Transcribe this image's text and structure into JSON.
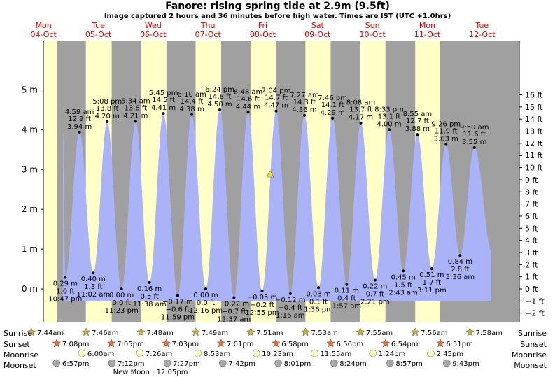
{
  "chart_data": {
    "type": "area",
    "title": "Fanore: rising  spring tide at 2.9m (9.5ft)",
    "subtitle": "Image captured 2 hours and 36 minutes before high water. Times are IST (UTC +1.0hrs)",
    "ylim": [
      -0.63,
      5.0
    ],
    "y_ticks_m": [
      {
        "v": 0,
        "label": "0 m"
      },
      {
        "v": 1,
        "label": "1 m"
      },
      {
        "v": 2,
        "label": "2 m"
      },
      {
        "v": 3,
        "label": "3 m"
      },
      {
        "v": 4,
        "label": "4 m"
      },
      {
        "v": 5,
        "label": "5 m"
      }
    ],
    "y_ticks_ft": [
      "−2 ft",
      "−1 ft",
      "0 ft",
      "1 ft",
      "2 ft",
      "3 ft",
      "4 ft",
      "5 ft",
      "6 ft",
      "7 ft",
      "8 ft",
      "9 ft",
      "10 ft",
      "11 ft",
      "12 ft",
      "13 ft",
      "14 ft",
      "15 ft",
      "16 ft"
    ],
    "days": [
      {
        "dow": "Mon",
        "date": "04-Oct"
      },
      {
        "dow": "Tue",
        "date": "05-Oct"
      },
      {
        "dow": "Wed",
        "date": "06-Oct"
      },
      {
        "dow": "Thu",
        "date": "07-Oct"
      },
      {
        "dow": "Fri",
        "date": "08-Oct"
      },
      {
        "dow": "Sat",
        "date": "09-Oct"
      },
      {
        "dow": "Sun",
        "date": "10-Oct"
      },
      {
        "dow": "Mon",
        "date": "11-Oct"
      },
      {
        "dow": "Tue",
        "date": "12-Oct"
      }
    ],
    "day_night": [
      {
        "state": "night",
        "from": "Mon 00:00",
        "to": "Mon 07:44"
      },
      {
        "state": "day",
        "from": "Mon 07:44",
        "to": "Mon 19:08"
      },
      {
        "state": "day",
        "from": "Tue 07:46",
        "to": "Tue 19:05"
      },
      {
        "state": "day",
        "from": "Wed 07:48",
        "to": "Wed 19:03"
      },
      {
        "state": "day",
        "from": "Thu 07:49",
        "to": "Thu 19:01"
      },
      {
        "state": "day",
        "from": "Fri 07:51",
        "to": "Fri 18:58"
      },
      {
        "state": "day",
        "from": "Sat 07:53",
        "to": "Sat 18:56"
      },
      {
        "state": "day",
        "from": "Sun 07:55",
        "to": "Sun 18:54"
      },
      {
        "state": "day",
        "from": "Mon 07:56",
        "to": "Mon 18:51"
      }
    ],
    "tides": [
      {
        "t": "Mon 22:47",
        "m": 0.29,
        "label": [
          "0.29 m",
          "1.0 ft",
          "10:47 pm"
        ],
        "type": "low"
      },
      {
        "t": "Tue 04:59",
        "m": 3.94,
        "label": [
          "4:59 am",
          "12.9 ft",
          "3.94 m"
        ],
        "type": "high"
      },
      {
        "t": "Tue 11:02",
        "m": 0.4,
        "label": [
          "0.40 m",
          "1.3 ft",
          "11:02 am"
        ],
        "type": "low"
      },
      {
        "t": "Tue 17:08",
        "m": 4.2,
        "label": [
          "5:08 pm",
          "13.8 ft",
          "4.20 m"
        ],
        "type": "high"
      },
      {
        "t": "Tue 23:23",
        "m": 0.0,
        "label": [
          "0.00 m",
          "0.0 ft",
          "11:23 pm"
        ],
        "type": "low"
      },
      {
        "t": "Wed 05:34",
        "m": 4.21,
        "label": [
          "5:34 am",
          "13.8 ft",
          "4.21 m"
        ],
        "type": "high"
      },
      {
        "t": "Wed 11:38",
        "m": 0.16,
        "label": [
          "0.16 m",
          "0.5 ft",
          "11:38 am"
        ],
        "type": "low"
      },
      {
        "t": "Wed 17:45",
        "m": 4.41,
        "label": [
          "5:45 pm",
          "14.5 ft",
          "4.41 m"
        ],
        "type": "high"
      },
      {
        "t": "Wed 23:59",
        "m": -0.17,
        "label": [
          "−0.17 m",
          "−0.6 ft",
          "11:59 pm"
        ],
        "type": "low"
      },
      {
        "t": "Thu 06:10",
        "m": 4.38,
        "label": [
          "6:10 am",
          "14.4 ft",
          "4.38 m"
        ],
        "type": "high"
      },
      {
        "t": "Thu 12:16",
        "m": 0.0,
        "label": [
          "0.00 m",
          "0.0 ft",
          "12:16 pm"
        ],
        "type": "low"
      },
      {
        "t": "Thu 18:24",
        "m": 4.5,
        "label": [
          "6:24 pm",
          "14.8 ft",
          "4.50 m"
        ],
        "type": "high"
      },
      {
        "t": "Fri 00:37",
        "m": -0.22,
        "label": [
          "−0.22 m",
          "−0.7 ft",
          "12:37 am"
        ],
        "type": "low"
      },
      {
        "t": "Fri 06:48",
        "m": 4.44,
        "label": [
          "6:48 am",
          "14.6 ft",
          "4.44 m"
        ],
        "type": "high"
      },
      {
        "t": "Fri 12:55",
        "m": -0.05,
        "label": [
          "−0.05 m",
          "−0.2 ft",
          "12:55 pm"
        ],
        "type": "low"
      },
      {
        "t": "Fri 19:04",
        "m": 4.47,
        "label": [
          "7:04 pm",
          "14.7 ft",
          "4.47 m"
        ],
        "type": "high"
      },
      {
        "t": "Sat 01:16",
        "m": -0.12,
        "label": [
          "−0.12 m",
          "−0.4 ft",
          "1:16 am"
        ],
        "type": "low"
      },
      {
        "t": "Sat 07:27",
        "m": 4.36,
        "label": [
          "7:27 am",
          "14.3 ft",
          "4.36 m"
        ],
        "type": "high"
      },
      {
        "t": "Sat 13:36",
        "m": 0.03,
        "label": [
          "0.03 m",
          "0.1 ft",
          "1:36 pm"
        ],
        "type": "low"
      },
      {
        "t": "Sat 19:46",
        "m": 4.29,
        "label": [
          "7:46 pm",
          "14.1 ft",
          "4.29 m"
        ],
        "type": "high"
      },
      {
        "t": "Sun 01:57",
        "m": 0.11,
        "label": [
          "0.11 m",
          "0.4 ft",
          "1:57 am"
        ],
        "type": "low"
      },
      {
        "t": "Sun 08:08",
        "m": 4.17,
        "label": [
          "8:08 am",
          "13.7 ft",
          "4.17 m"
        ],
        "type": "high"
      },
      {
        "t": "Sun 14:21",
        "m": 0.22,
        "label": [
          "0.22 m",
          "0.7 ft",
          "2:21 pm"
        ],
        "type": "low"
      },
      {
        "t": "Sun 20:33",
        "m": 4.0,
        "label": [
          "8:33 pm",
          "13.1 ft",
          "4.00 m"
        ],
        "type": "high"
      },
      {
        "t": "Mon 02:43",
        "m": 0.45,
        "label": [
          "0.45 m",
          "1.5 ft",
          "2:43 am"
        ],
        "type": "low"
      },
      {
        "t": "Mon 08:55",
        "m": 3.88,
        "label": [
          "8:55 am",
          "12.7 ft",
          "3.88 m"
        ],
        "type": "high"
      },
      {
        "t": "Mon 15:11",
        "m": 0.51,
        "label": [
          "0.51 m",
          "1.7 ft",
          "3:11 pm"
        ],
        "type": "low"
      },
      {
        "t": "Mon 21:26",
        "m": 3.63,
        "label": [
          "9:26 pm",
          "11.9 ft",
          "3.63 m"
        ],
        "type": "high"
      },
      {
        "t": "Tue 03:36",
        "m": 0.84,
        "label": [
          "0.84 m",
          "2.8 ft",
          "3:36 am"
        ],
        "type": "low"
      },
      {
        "t": "Tue 09:50",
        "m": 3.55,
        "label": [
          "9:50 am",
          "11.6 ft",
          "3.55 m"
        ],
        "type": "high"
      }
    ],
    "current": {
      "t": "Fri 16:28",
      "m": 2.9
    },
    "sunrise": [
      "7:44am",
      "7:46am",
      "7:48am",
      "7:49am",
      "7:51am",
      "7:53am",
      "7:55am",
      "7:56am",
      "7:58am"
    ],
    "sunset": [
      "7:08pm",
      "7:05pm",
      "7:03pm",
      "7:01pm",
      "6:58pm",
      "6:56pm",
      "6:54pm",
      "6:51pm"
    ],
    "moonrise": [
      {
        "t": "Tue 06:00",
        "label": "6:00am"
      },
      {
        "t": "Wed 07:26",
        "label": "7:26am"
      },
      {
        "t": "Thu 08:53",
        "label": "8:53am"
      },
      {
        "t": "Fri 10:23",
        "label": "10:23am"
      },
      {
        "t": "Sat 11:55",
        "label": "11:55am"
      },
      {
        "t": "Sun 13:24",
        "label": "1:24pm"
      },
      {
        "t": "Mon 14:45",
        "label": "2:45pm"
      }
    ],
    "moonset": [
      {
        "t": "Mon 18:57",
        "label": "6:57pm"
      },
      {
        "t": "Tue 19:12",
        "label": "7:12pm"
      },
      {
        "t": "Wed 19:27",
        "label": "7:27pm"
      },
      {
        "t": "Thu 19:42",
        "label": "7:42pm"
      },
      {
        "t": "Fri 20:01",
        "label": "8:01pm"
      },
      {
        "t": "Sat 20:24",
        "label": "8:24pm"
      },
      {
        "t": "Sun 20:57",
        "label": "8:57pm"
      },
      {
        "t": "Mon 21:43",
        "label": "9:43pm"
      }
    ],
    "moon_phase": {
      "label": "New Moon",
      "time": "12:05pm",
      "t": "Wed 12:05"
    },
    "row_labels": {
      "sunrise": "Sunrise",
      "sunset": "Sunset",
      "moonrise": "Moonrise",
      "moonset": "Moonset"
    },
    "colors": {
      "sea": "#aab2f8",
      "day": "#ffffc8",
      "night": "#a0a0a0",
      "red": "#e00000",
      "marker": "#f0e050",
      "star": "#c8b040",
      "sunset_star": "#e07040",
      "moonrise_circle": "#ffffc0",
      "moonset_circle": "#a8a8a8"
    }
  }
}
